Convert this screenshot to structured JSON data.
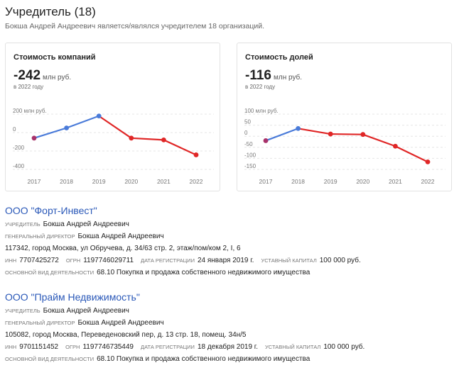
{
  "header": {
    "title": "Учредитель (18)",
    "subtitle": "Бокша Андрей Андреевич является/являлся учредителем 18 организаций."
  },
  "cards": [
    {
      "title": "Стоимость компаний",
      "value": "-242",
      "unit": "млн руб.",
      "year_note": "в 2022 году"
    },
    {
      "title": "Стоимость долей",
      "value": "-116",
      "unit": "млн руб.",
      "year_note": "в 2022 году"
    }
  ],
  "chart_data": [
    {
      "type": "line",
      "title": "Стоимость компаний",
      "x": [
        "2017",
        "2018",
        "2019",
        "2020",
        "2021",
        "2022"
      ],
      "y_ticks": [
        "200 млн руб.",
        "0",
        "-200",
        "-400"
      ],
      "y_tick_values": [
        200,
        0,
        -200,
        -400
      ],
      "ylim": [
        -400,
        200
      ],
      "series": [
        {
          "values": [
            -60,
            50,
            180,
            -60,
            -80,
            -242
          ]
        }
      ],
      "colors": {
        "up": "#4a7bd9",
        "down": "#e02727"
      },
      "grid": true
    },
    {
      "type": "line",
      "title": "Стоимость долей",
      "x": [
        "2017",
        "2018",
        "2019",
        "2020",
        "2021",
        "2022"
      ],
      "y_ticks": [
        "100 млн руб.",
        "50",
        "0",
        "-50",
        "-100",
        "-150"
      ],
      "y_tick_values": [
        100,
        50,
        0,
        -50,
        -100,
        -150
      ],
      "ylim": [
        -150,
        100
      ],
      "series": [
        {
          "values": [
            -20,
            35,
            10,
            8,
            -45,
            -116
          ]
        }
      ],
      "colors": {
        "up": "#4a7bd9",
        "down": "#e02727"
      },
      "grid": true
    }
  ],
  "companies": [
    {
      "name": "ООО \"Форт-Инвест\"",
      "founder_label": "учредитель",
      "founder": "Бокша Андрей Андреевич",
      "director_label": "генеральный директор",
      "director": "Бокша Андрей Андреевич",
      "address": "117342, город Москва, ул Обручева, д. 34/63 стр. 2, этаж/пом/ком 2, I, 6",
      "inn_label": "ИНН",
      "inn": "7707425272",
      "ogrn_label": "ОГРН",
      "ogrn": "1197746029711",
      "reg_label": "дата регистрации",
      "reg_date": "24 января 2019 г.",
      "capital_label": "уставный капитал",
      "capital": "100 000 руб.",
      "activity_label": "основной вид деятельности",
      "activity": "68.10 Покупка и продажа собственного недвижимого имущества"
    },
    {
      "name": "ООО \"Прайм Недвижимость\"",
      "founder_label": "учредитель",
      "founder": "Бокша Андрей Андреевич",
      "director_label": "генеральный директор",
      "director": "Бокша Андрей Андреевич",
      "address": "105082, город Москва, Переведеновский пер, д. 13 стр. 18, помещ. 34н/5",
      "inn_label": "ИНН",
      "inn": "9701151452",
      "ogrn_label": "ОГРН",
      "ogrn": "1197746735449",
      "reg_label": "дата регистрации",
      "reg_date": "18 декабря 2019 г.",
      "capital_label": "уставный капитал",
      "capital": "100 000 руб.",
      "activity_label": "основной вид деятельности",
      "activity": "68.10 Покупка и продажа собственного недвижимого имущества"
    }
  ]
}
